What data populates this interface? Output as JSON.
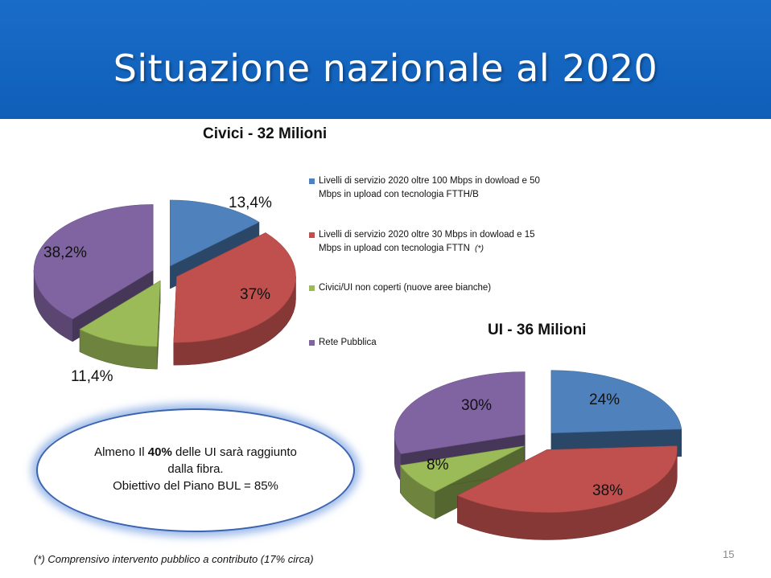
{
  "header": {
    "title": "Situazione nazionale al 2020"
  },
  "chart_data": [
    {
      "type": "pie",
      "title": "Civici - 32 Milioni",
      "categories": [
        "Livelli di servizio 2020 oltre 100 Mbps in dowload e 50 Mbps in upload con tecnologia FTTH/B",
        "Livelli di servizio 2020 oltre 30 Mbps in dowload e 15 Mbps in upload con tecnologia FTTN",
        "Civici/UI non coperti (nuove aree bianche)",
        "Rete Pubblica"
      ],
      "values": [
        13.4,
        37,
        11.4,
        38.2
      ],
      "value_labels": [
        "13,4%",
        "37%",
        "11,4%",
        "38,2%"
      ],
      "colors": [
        "#4f81bd",
        "#c0504d",
        "#9bbb59",
        "#8064a2"
      ],
      "legend": "right"
    },
    {
      "type": "pie",
      "title": "UI - 36 Milioni",
      "values": [
        24,
        38,
        8,
        30
      ],
      "value_labels": [
        "24%",
        "38%",
        "8%",
        "30%"
      ],
      "colors": [
        "#4f81bd",
        "#c0504d",
        "#9bbb59",
        "#8064a2"
      ]
    }
  ],
  "legend": {
    "items": [
      {
        "label": "Livelli di servizio 2020 oltre 100 Mbps in dowload e 50 Mbps in upload con tecnologia FTTH/B",
        "color": "#4f81bd"
      },
      {
        "label": "Livelli di servizio 2020 oltre 30 Mbps in dowload e 15 Mbps in upload con tecnologia FTTN",
        "color": "#c0504d",
        "note": "(*)"
      },
      {
        "label": "Civici/UI non coperti (nuove aree bianche)",
        "color": "#9bbb59"
      },
      {
        "label": "Rete Pubblica",
        "color": "#8064a2"
      }
    ]
  },
  "callout": {
    "line1_pre": "Almeno Il ",
    "line1_bold": "40%",
    "line1_post": " delle UI sarà raggiunto",
    "line2": "dalla fibra.",
    "line3": "Obiettivo del Piano BUL = 85%"
  },
  "footnote": "(*) Comprensivo intervento pubblico a contributo (17% circa)",
  "page_number": "15"
}
